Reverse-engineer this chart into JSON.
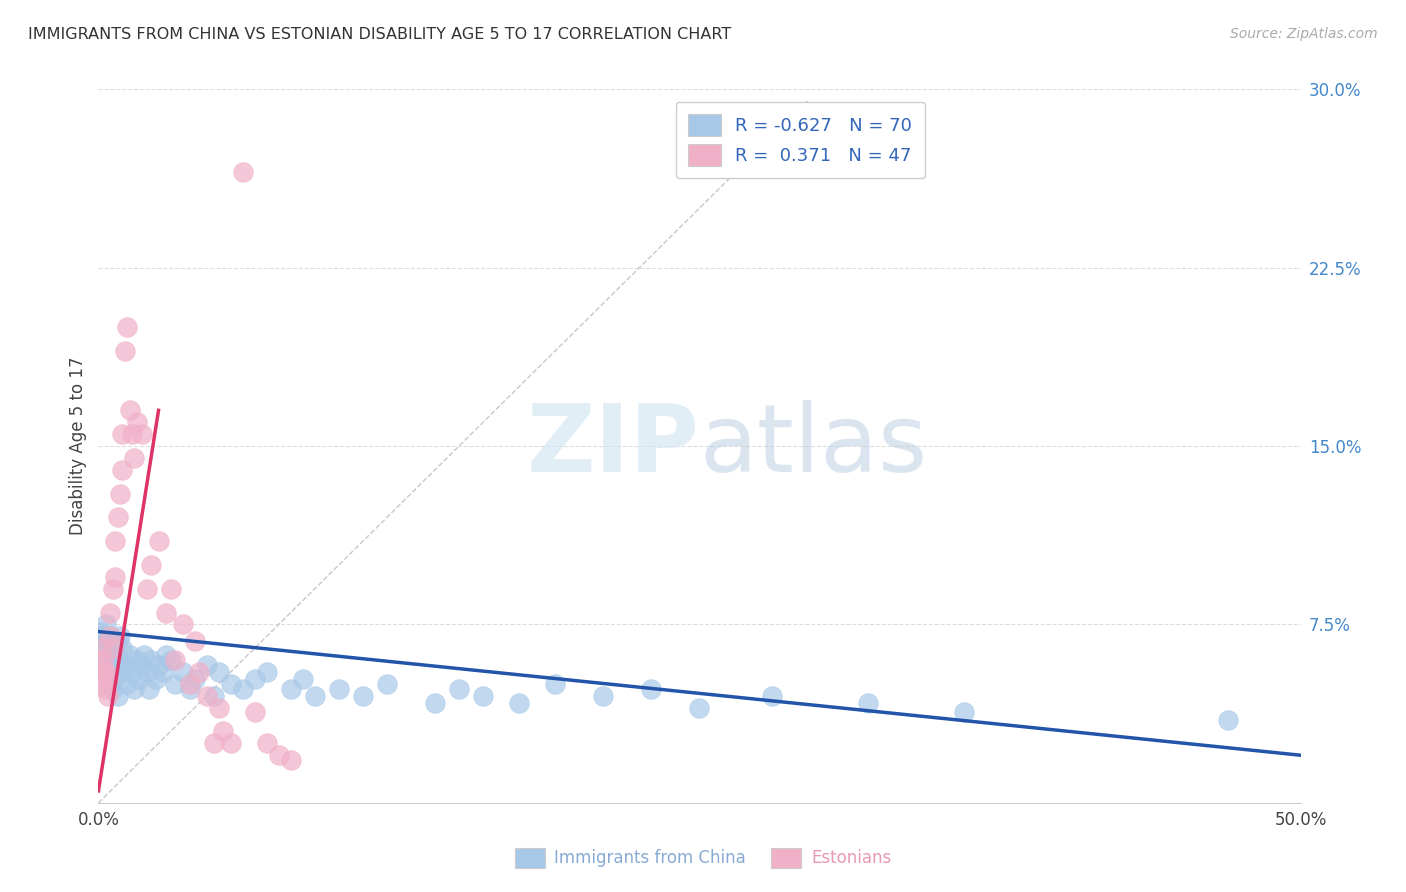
{
  "title": "IMMIGRANTS FROM CHINA VS ESTONIAN DISABILITY AGE 5 TO 17 CORRELATION CHART",
  "source": "Source: ZipAtlas.com",
  "ylabel": "Disability Age 5 to 17",
  "x_label_china": "Immigrants from China",
  "x_label_estonian": "Estonians",
  "xmin": 0.0,
  "xmax": 0.5,
  "ymin": 0.0,
  "ymax": 0.3,
  "xticks": [
    0.0,
    0.5
  ],
  "yticks_right": [
    0.075,
    0.15,
    0.225,
    0.3
  ],
  "ytick_right_labels": [
    "7.5%",
    "15.0%",
    "22.5%",
    "30.0%"
  ],
  "xtick_labels": [
    "0.0%",
    "50.0%"
  ],
  "china_color": "#a8c8e8",
  "estonian_color": "#f0b0c8",
  "china_line_color": "#2255aa",
  "estonian_line_color": "#dd3366",
  "ref_line_color": "#c8c8c8",
  "legend_r_china": "R = -0.627",
  "legend_n_china": "N = 70",
  "legend_r_estonian": "R =  0.371",
  "legend_n_estonian": "N = 47",
  "watermark_zip": "ZIP",
  "watermark_atlas": "atlas",
  "background_color": "#ffffff",
  "china_line_x": [
    0.0,
    0.5
  ],
  "china_line_y": [
    0.072,
    0.02
  ],
  "estonian_line_x": [
    0.0,
    0.025
  ],
  "estonian_line_y": [
    0.005,
    0.165
  ],
  "ref_line_x": [
    0.0,
    0.295
  ],
  "ref_line_y": [
    0.0,
    0.295
  ],
  "china_scatter_x": [
    0.0005,
    0.001,
    0.0015,
    0.002,
    0.002,
    0.003,
    0.003,
    0.003,
    0.004,
    0.004,
    0.005,
    0.005,
    0.005,
    0.006,
    0.006,
    0.007,
    0.007,
    0.008,
    0.008,
    0.008,
    0.009,
    0.009,
    0.01,
    0.01,
    0.011,
    0.012,
    0.013,
    0.014,
    0.015,
    0.016,
    0.017,
    0.018,
    0.019,
    0.02,
    0.021,
    0.022,
    0.024,
    0.025,
    0.027,
    0.028,
    0.03,
    0.032,
    0.035,
    0.038,
    0.04,
    0.045,
    0.048,
    0.05,
    0.055,
    0.06,
    0.065,
    0.07,
    0.08,
    0.085,
    0.09,
    0.1,
    0.11,
    0.12,
    0.14,
    0.15,
    0.16,
    0.175,
    0.19,
    0.21,
    0.23,
    0.25,
    0.28,
    0.32,
    0.36,
    0.47
  ],
  "china_scatter_y": [
    0.068,
    0.072,
    0.065,
    0.06,
    0.07,
    0.058,
    0.068,
    0.075,
    0.055,
    0.065,
    0.05,
    0.062,
    0.07,
    0.048,
    0.058,
    0.052,
    0.063,
    0.045,
    0.058,
    0.068,
    0.06,
    0.07,
    0.055,
    0.065,
    0.058,
    0.05,
    0.062,
    0.055,
    0.048,
    0.06,
    0.052,
    0.058,
    0.062,
    0.055,
    0.048,
    0.06,
    0.052,
    0.058,
    0.055,
    0.062,
    0.06,
    0.05,
    0.055,
    0.048,
    0.052,
    0.058,
    0.045,
    0.055,
    0.05,
    0.048,
    0.052,
    0.055,
    0.048,
    0.052,
    0.045,
    0.048,
    0.045,
    0.05,
    0.042,
    0.048,
    0.045,
    0.042,
    0.05,
    0.045,
    0.048,
    0.04,
    0.045,
    0.042,
    0.038,
    0.035
  ],
  "estonian_scatter_x": [
    0.0005,
    0.001,
    0.001,
    0.0015,
    0.002,
    0.002,
    0.003,
    0.003,
    0.004,
    0.004,
    0.005,
    0.005,
    0.006,
    0.006,
    0.007,
    0.007,
    0.008,
    0.009,
    0.01,
    0.01,
    0.011,
    0.012,
    0.013,
    0.014,
    0.015,
    0.016,
    0.018,
    0.02,
    0.022,
    0.025,
    0.028,
    0.03,
    0.032,
    0.035,
    0.038,
    0.04,
    0.042,
    0.045,
    0.048,
    0.05,
    0.052,
    0.055,
    0.06,
    0.065,
    0.07,
    0.075,
    0.08
  ],
  "estonian_scatter_y": [
    0.06,
    0.055,
    0.065,
    0.05,
    0.055,
    0.06,
    0.048,
    0.055,
    0.045,
    0.052,
    0.07,
    0.08,
    0.065,
    0.09,
    0.095,
    0.11,
    0.12,
    0.13,
    0.14,
    0.155,
    0.19,
    0.2,
    0.165,
    0.155,
    0.145,
    0.16,
    0.155,
    0.09,
    0.1,
    0.11,
    0.08,
    0.09,
    0.06,
    0.075,
    0.05,
    0.068,
    0.055,
    0.045,
    0.025,
    0.04,
    0.03,
    0.025,
    0.265,
    0.038,
    0.025,
    0.02,
    0.018
  ]
}
